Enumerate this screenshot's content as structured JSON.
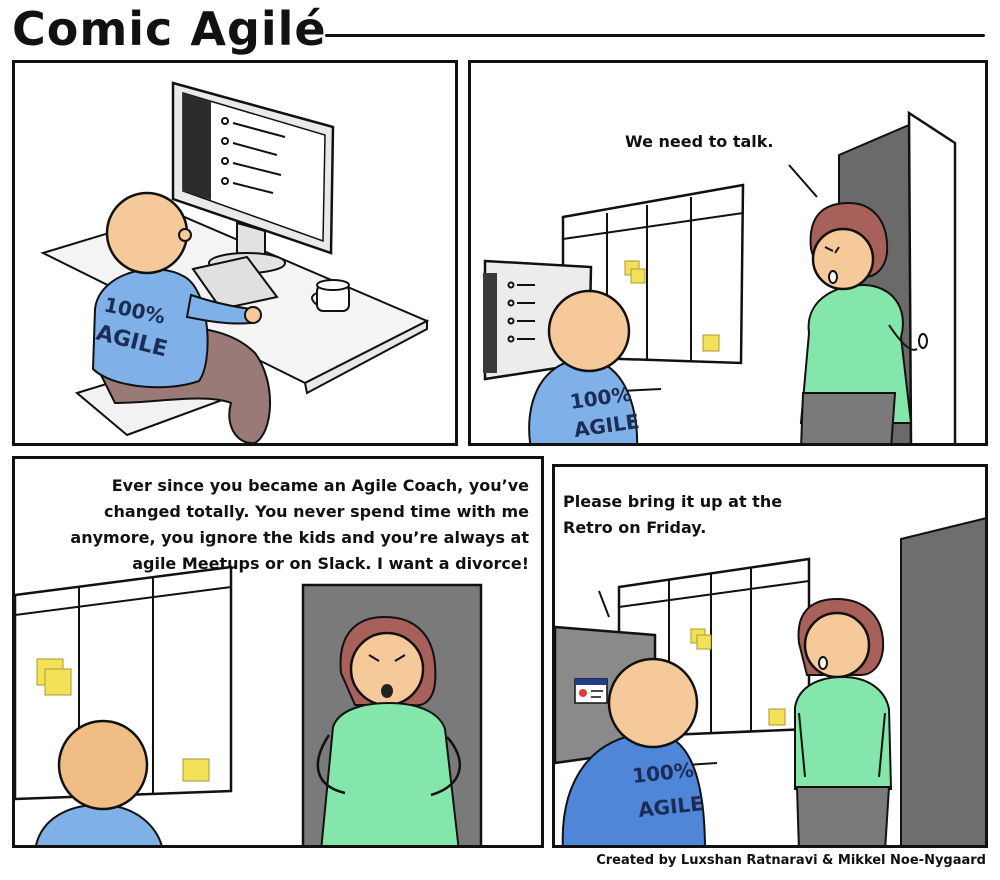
{
  "header": {
    "title": "Comic Agilé"
  },
  "panels": {
    "p1": {
      "shirt": [
        "100%",
        "AGILE"
      ]
    },
    "p2": {
      "speech": "We need to talk.",
      "shirt": [
        "100%",
        "AGILE"
      ]
    },
    "p3": {
      "speech": "Ever since you became an Agile Coach, you’ve changed totally. You never spend time with me anymore, you ignore the kids and you’re always at agile Meetups or on Slack. I want a divorce!"
    },
    "p4": {
      "speech": "Please bring it up at the Retro on Friday.",
      "shirt": [
        "100%",
        "AGILE"
      ]
    }
  },
  "footer": {
    "credit": "Created by Luxshan Ratnaravi & Mikkel Noe-Nygaard"
  },
  "colors": {
    "skin": "#f6c99a",
    "shirt_blue": "#7fb1e8",
    "shirt_green": "#84e6ab",
    "hair": "#a8605a",
    "pants": "#8a6e6a",
    "sticky": "#f4e15a",
    "door_gray": "#6a6a6a"
  }
}
